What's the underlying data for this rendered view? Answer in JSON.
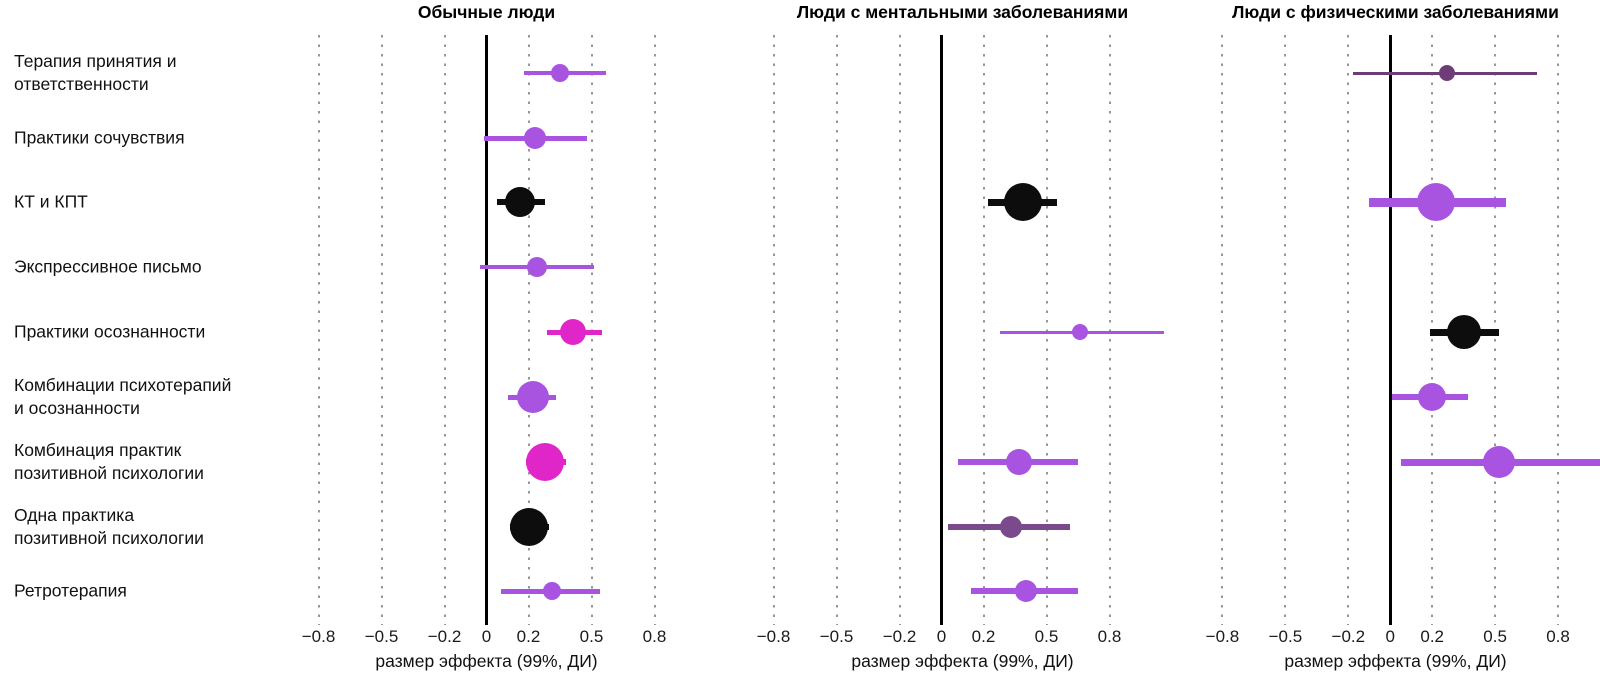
{
  "chart_data": {
    "type": "scatter",
    "subtype": "forest-plot",
    "xlabel": "размер эффекта (99%, ДИ)",
    "xticks": [
      -0.8,
      -0.5,
      -0.2,
      0,
      0.2,
      0.5,
      0.8
    ],
    "xtick_labels": [
      "−0.8",
      "−0.5",
      "−0.2",
      "0",
      "0.2",
      "0.5",
      "0.8"
    ],
    "grid": "dotted-vertical",
    "zero_reference_line": true,
    "colors": {
      "purple": "#a854e0",
      "magenta": "#e126c9",
      "black": "#0d0d0d",
      "plum": "#7b4a8d",
      "darkplum": "#6e3d78"
    },
    "categories": [
      "Терапия принятия и\nответственности",
      "Практики сочувствия",
      "КТ и КПТ",
      "Экспрессивное письмо",
      "Практики осознанности",
      "Комбинации психотерапий\nи осознанности",
      "Комбинация практик\nпозитивной психологии",
      "Одна практика\nпозитивной психологии",
      "Ретротерапия"
    ],
    "panels": [
      {
        "title": "Обычные люди",
        "xlim": [
          -0.95,
          0.95
        ],
        "points": [
          {
            "row": 0,
            "value": 0.35,
            "ci": [
              0.18,
              0.57
            ],
            "color": "purple",
            "r": 9,
            "lw": 4
          },
          {
            "row": 1,
            "value": 0.23,
            "ci": [
              -0.01,
              0.48
            ],
            "color": "purple",
            "r": 11,
            "lw": 5
          },
          {
            "row": 2,
            "value": 0.16,
            "ci": [
              0.05,
              0.28
            ],
            "color": "black",
            "r": 15,
            "lw": 6
          },
          {
            "row": 3,
            "value": 0.24,
            "ci": [
              -0.03,
              0.51
            ],
            "color": "purple",
            "r": 10,
            "lw": 4
          },
          {
            "row": 4,
            "value": 0.41,
            "ci": [
              0.29,
              0.55
            ],
            "color": "magenta",
            "r": 13,
            "lw": 5
          },
          {
            "row": 5,
            "value": 0.22,
            "ci": [
              0.1,
              0.33
            ],
            "color": "purple",
            "r": 16,
            "lw": 5
          },
          {
            "row": 6,
            "value": 0.28,
            "ci": [
              0.19,
              0.38
            ],
            "color": "magenta",
            "r": 19,
            "lw": 6
          },
          {
            "row": 7,
            "value": 0.2,
            "ci": [
              0.11,
              0.3
            ],
            "color": "black",
            "r": 19,
            "lw": 6
          },
          {
            "row": 8,
            "value": 0.31,
            "ci": [
              0.07,
              0.54
            ],
            "color": "purple",
            "r": 9,
            "lw": 5
          }
        ]
      },
      {
        "title": "Люди с ментальными заболеваниями",
        "xlim": [
          -0.95,
          1.15
        ],
        "points": [
          {
            "row": 2,
            "value": 0.39,
            "ci": [
              0.22,
              0.55
            ],
            "color": "black",
            "r": 19,
            "lw": 7
          },
          {
            "row": 4,
            "value": 0.66,
            "ci": [
              0.28,
              1.06
            ],
            "color": "purple",
            "r": 8,
            "lw": 3
          },
          {
            "row": 6,
            "value": 0.37,
            "ci": [
              0.08,
              0.65
            ],
            "color": "purple",
            "r": 13,
            "lw": 6
          },
          {
            "row": 7,
            "value": 0.33,
            "ci": [
              0.03,
              0.61
            ],
            "color": "plum",
            "r": 11,
            "lw": 6
          },
          {
            "row": 8,
            "value": 0.4,
            "ci": [
              0.14,
              0.65
            ],
            "color": "purple",
            "r": 11,
            "lw": 6
          }
        ]
      },
      {
        "title": "Люди с физическими заболеваниями",
        "xlim": [
          -0.95,
          1.0
        ],
        "points": [
          {
            "row": 0,
            "value": 0.27,
            "ci": [
              -0.18,
              0.7
            ],
            "color": "darkplum",
            "r": 8,
            "lw": 3
          },
          {
            "row": 2,
            "value": 0.22,
            "ci": [
              -0.1,
              0.55
            ],
            "color": "purple",
            "r": 19,
            "lw": 9
          },
          {
            "row": 4,
            "value": 0.35,
            "ci": [
              0.19,
              0.52
            ],
            "color": "black",
            "r": 17,
            "lw": 7
          },
          {
            "row": 5,
            "value": 0.2,
            "ci": [
              0.01,
              0.37
            ],
            "color": "purple",
            "r": 14,
            "lw": 6
          },
          {
            "row": 6,
            "value": 0.52,
            "ci": [
              0.05,
              1.0
            ],
            "color": "purple",
            "r": 16,
            "lw": 7
          }
        ]
      }
    ]
  }
}
